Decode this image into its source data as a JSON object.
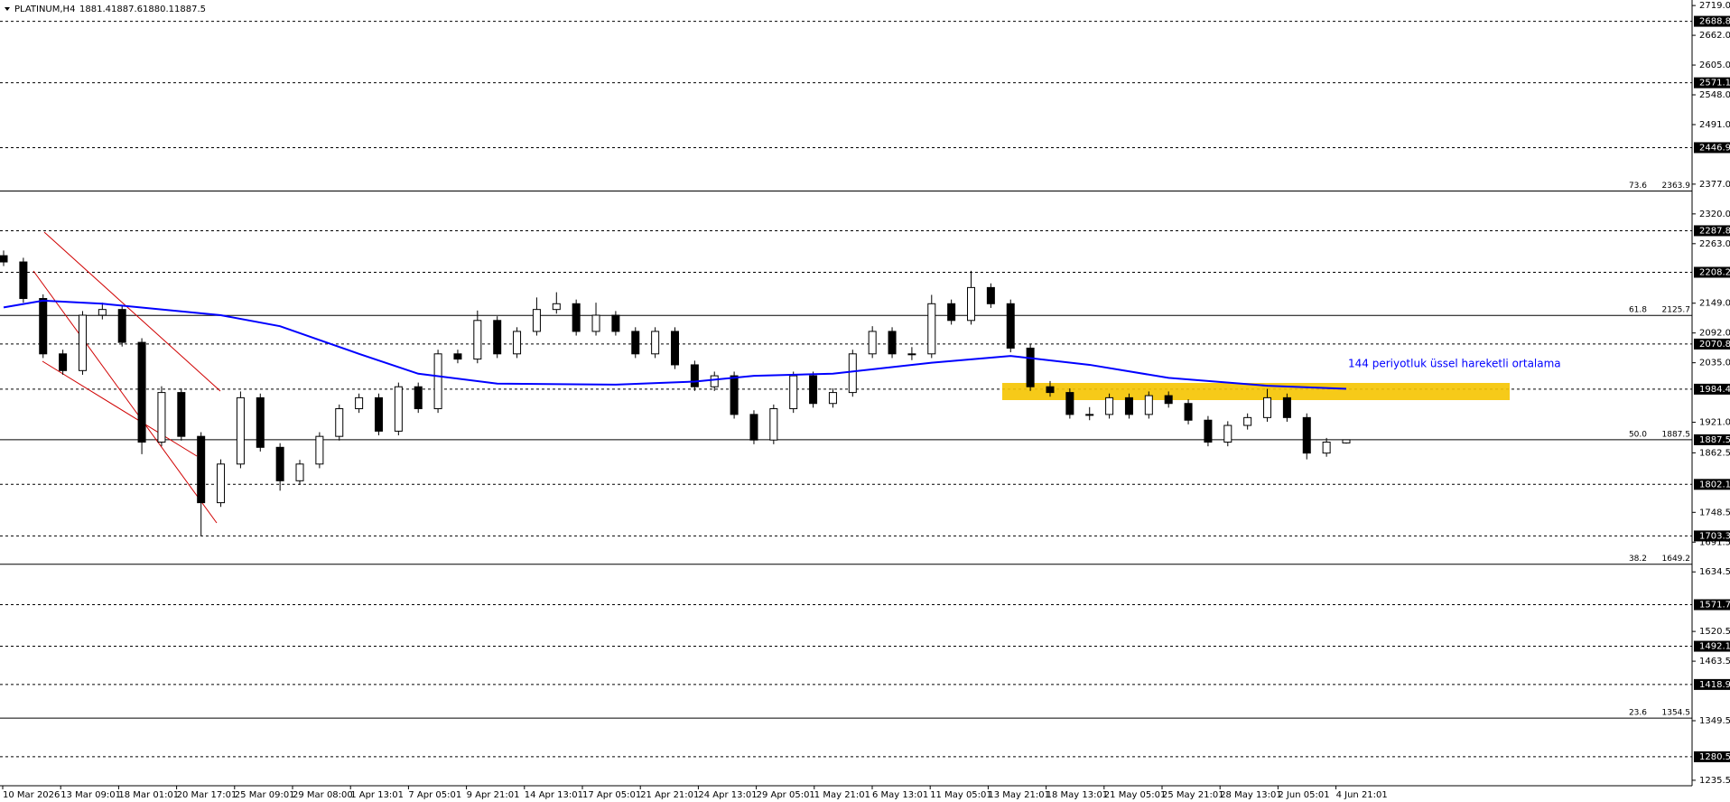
{
  "chart_data": {
    "type": "candlestick",
    "symbol": "PLATINUM,H4",
    "annotation": "144 periyotluk üssel hareketli ortalama",
    "ylim": [
      1225,
      2729.6
    ],
    "yticks": [
      {
        "value": 2719,
        "label": "2719.0"
      },
      {
        "value": 2662,
        "label": "2662.0"
      },
      {
        "value": 2605,
        "label": "2605.0"
      },
      {
        "value": 2548,
        "label": "2548.0"
      },
      {
        "value": 2491,
        "label": "2491.0"
      },
      {
        "value": 2377,
        "label": "2377.0"
      },
      {
        "value": 2320,
        "label": "2320.0"
      },
      {
        "value": 2263,
        "label": "2263.0"
      },
      {
        "value": 2149,
        "label": "2149.0"
      },
      {
        "value": 2092,
        "label": "2092.0"
      },
      {
        "value": 2035,
        "label": "2035.0"
      },
      {
        "value": 1921,
        "label": "1921.0"
      },
      1862.5,
      1748.5,
      1691.5,
      1634.5,
      1520.5,
      1463.5,
      1349.5,
      1235.5
    ],
    "categories": [
      "10 Mar 2026",
      "13 Mar 09:01",
      "18 Mar 01:01",
      "20 Mar 17:01",
      "25 Mar 09:01",
      "29 Mar 08:00",
      "1 Apr 13:01",
      "7 Apr 05:01",
      "9 Apr 21:01",
      "14 Apr 13:01",
      "17 Apr 05:01",
      "21 Apr 21:01",
      "24 Apr 13:01",
      "29 Apr 05:01",
      "1 May 21:01",
      "6 May 13:01",
      "11 May 05:01",
      "13 May 21:01",
      "18 May 13:01",
      "21 May 05:01",
      "25 May 21:01",
      "28 May 13:01",
      "2 Jun 05:01",
      "4 Jun 21:01"
    ],
    "levels": [
      2688.8,
      2571.1,
      2446.9,
      2287.8,
      2208.2,
      2070.8,
      1984.4,
      1802.1,
      1703.3,
      1571.7,
      1492.1,
      1418.9,
      1280.5
    ],
    "fib_levels": [
      {
        "label": "73.6",
        "value": 2363.9
      },
      {
        "label": "61.8",
        "value": 2125.7
      },
      {
        "label": "50.0",
        "value": 1887.5
      },
      {
        "label": "38.2",
        "value": 1649.2
      },
      {
        "label": "23.6",
        "value": 1354.5
      }
    ],
    "candles": [
      [
        2240,
        2250,
        2220,
        2228
      ],
      [
        2228,
        2236,
        2150,
        2158
      ],
      [
        2158,
        2166,
        2044,
        2052
      ],
      [
        2052,
        2060,
        2012,
        2020
      ],
      [
        2020,
        2134,
        2012,
        2126
      ],
      [
        2126,
        2150,
        2118,
        2137
      ],
      [
        2137,
        2145,
        2066,
        2074
      ],
      [
        2074,
        2082,
        1860,
        1883
      ],
      [
        1883,
        1990,
        1875,
        1978
      ],
      [
        1978,
        1986,
        1886,
        1894
      ],
      [
        1894,
        1902,
        1703,
        1767
      ],
      [
        1767,
        1850,
        1759,
        1841
      ],
      [
        1841,
        1980,
        1833,
        1968
      ],
      [
        1968,
        1976,
        1865,
        1873
      ],
      [
        1873,
        1881,
        1790,
        1809
      ],
      [
        1809,
        1849,
        1801,
        1841
      ],
      [
        1841,
        1902,
        1833,
        1894
      ],
      [
        1894,
        1955,
        1886,
        1947
      ],
      [
        1947,
        1976,
        1939,
        1968
      ],
      [
        1968,
        1976,
        1896,
        1904
      ],
      [
        1904,
        1997,
        1896,
        1989
      ],
      [
        1989,
        1997,
        1939,
        1947
      ],
      [
        1947,
        2060,
        1939,
        2052
      ],
      [
        2052,
        2060,
        2034,
        2042
      ],
      [
        2042,
        2135,
        2034,
        2116
      ],
      [
        2116,
        2124,
        2044,
        2052
      ],
      [
        2052,
        2103,
        2044,
        2095
      ],
      [
        2095,
        2160,
        2087,
        2137
      ],
      [
        2137,
        2170,
        2129,
        2148
      ],
      [
        2148,
        2156,
        2087,
        2095
      ],
      [
        2095,
        2150,
        2087,
        2126
      ],
      [
        2126,
        2134,
        2087,
        2095
      ],
      [
        2095,
        2103,
        2044,
        2052
      ],
      [
        2052,
        2103,
        2044,
        2095
      ],
      [
        2095,
        2103,
        2023,
        2031
      ],
      [
        2031,
        2039,
        1981,
        1989
      ],
      [
        1989,
        2018,
        1981,
        2010
      ],
      [
        2010,
        2018,
        1928,
        1936
      ],
      [
        1936,
        1944,
        1879,
        1887
      ],
      [
        1887,
        1955,
        1879,
        1947
      ],
      [
        1947,
        2018,
        1939,
        2010
      ],
      [
        2010,
        2018,
        1949,
        1957
      ],
      [
        1957,
        1986,
        1949,
        1978
      ],
      [
        1978,
        2060,
        1970,
        2052
      ],
      [
        2052,
        2105,
        2044,
        2095
      ],
      [
        2095,
        2103,
        2044,
        2052
      ],
      [
        2052,
        2065,
        2040,
        2052
      ],
      [
        2052,
        2165,
        2044,
        2148
      ],
      [
        2148,
        2156,
        2108,
        2116
      ],
      [
        2116,
        2211,
        2108,
        2179
      ],
      [
        2179,
        2187,
        2140,
        2148
      ],
      [
        2148,
        2156,
        2055,
        2063
      ],
      [
        2063,
        2071,
        1981,
        1989
      ],
      [
        1989,
        2000,
        1970,
        1978
      ],
      [
        1978,
        1986,
        1928,
        1936
      ],
      [
        1936,
        1950,
        1925,
        1936
      ],
      [
        1936,
        1976,
        1928,
        1968
      ],
      [
        1968,
        1976,
        1928,
        1936
      ],
      [
        1936,
        1980,
        1928,
        1972
      ],
      [
        1972,
        1980,
        1949,
        1957
      ],
      [
        1957,
        1965,
        1917,
        1925
      ],
      [
        1925,
        1933,
        1875,
        1883
      ],
      [
        1883,
        1923,
        1875,
        1915
      ],
      [
        1915,
        1938,
        1907,
        1930
      ],
      [
        1930,
        1985,
        1922,
        1968
      ],
      [
        1968,
        1976,
        1922,
        1930
      ],
      [
        1930,
        1938,
        1850,
        1862
      ],
      [
        1862,
        1891,
        1855,
        1883
      ],
      [
        1881.4,
        1887.6,
        1880.1,
        1887.5
      ]
    ],
    "ema": {
      "color": "#0000ff",
      "x": [
        0,
        2,
        5,
        11,
        14,
        18,
        21,
        25,
        31,
        35,
        38,
        42,
        47,
        51,
        55,
        59,
        64,
        68
      ],
      "values": [
        2141,
        2154,
        2148,
        2126,
        2105,
        2052,
        2014,
        1995,
        1993,
        1999,
        2010,
        2014,
        2035,
        2048,
        2031,
        2006,
        1991,
        1985
      ]
    }
  }
}
